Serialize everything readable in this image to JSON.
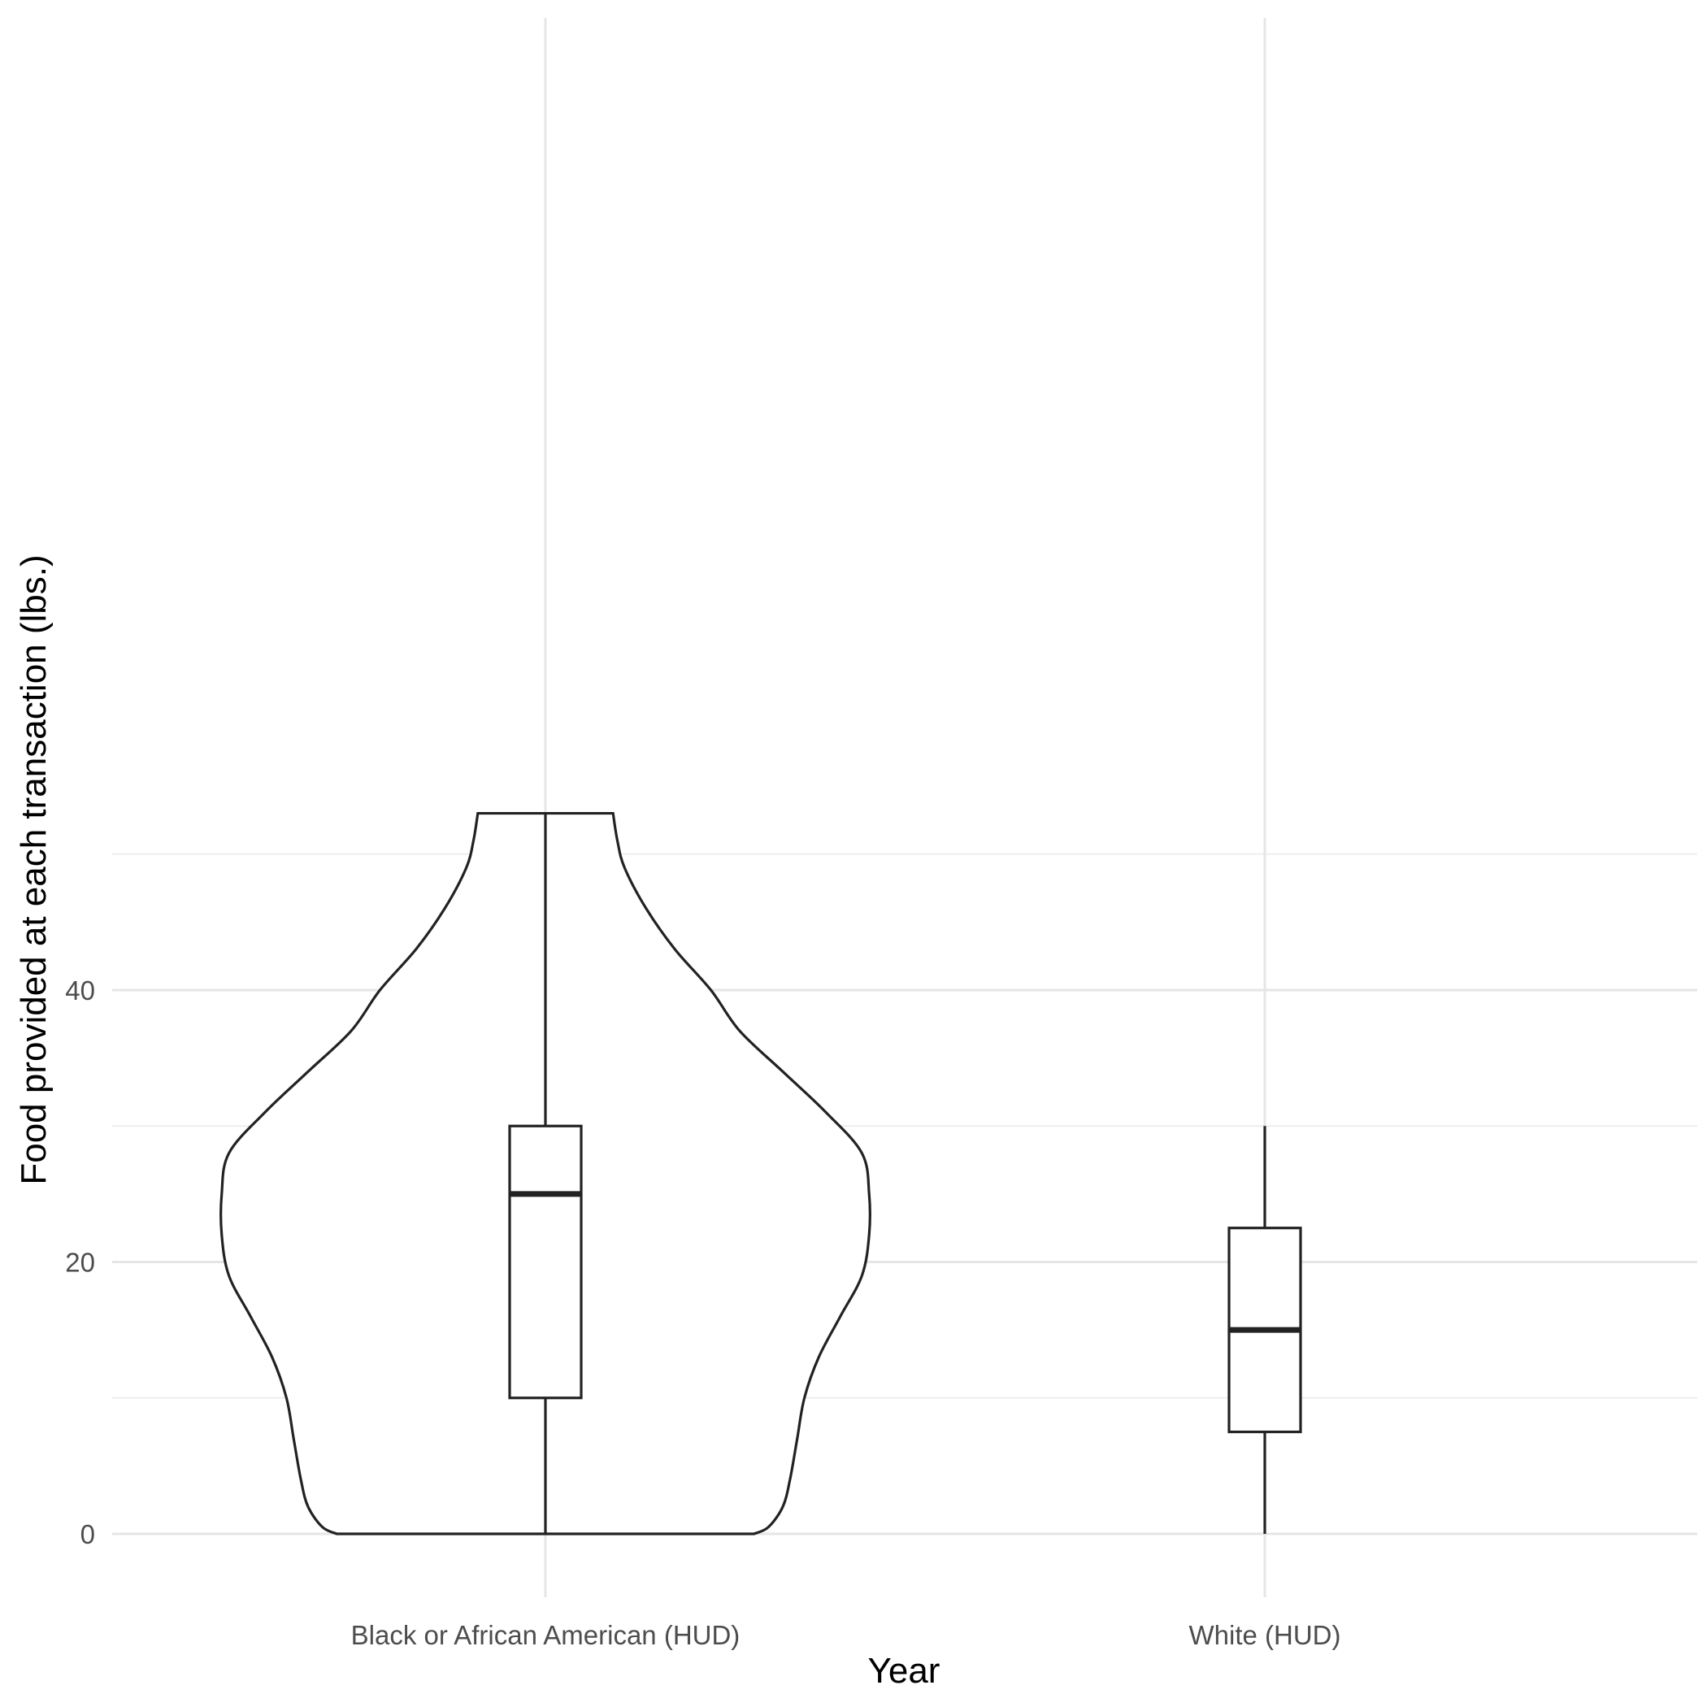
{
  "chart_data": {
    "type": "violin",
    "xlabel": "Year",
    "ylabel": "Food provided at each transaction (lbs.)",
    "categories": [
      "Black or African American (HUD)",
      "White (HUD)"
    ],
    "y_ticks": [
      0,
      20,
      40
    ],
    "ylim": [
      -3.5,
      55
    ],
    "grid": true,
    "legend": "none",
    "violins": [
      {
        "category": "Black or African American (HUD)",
        "y_min": 0,
        "y_max": 53,
        "density_profile": [
          {
            "y": 0,
            "half_width": 0.29
          },
          {
            "y": 0.5,
            "half_width": 0.31
          },
          {
            "y": 2,
            "half_width": 0.33
          },
          {
            "y": 4,
            "half_width": 0.34
          },
          {
            "y": 7,
            "half_width": 0.35
          },
          {
            "y": 10,
            "half_width": 0.36
          },
          {
            "y": 13,
            "half_width": 0.38
          },
          {
            "y": 16,
            "half_width": 0.41
          },
          {
            "y": 19,
            "half_width": 0.44
          },
          {
            "y": 22,
            "half_width": 0.45
          },
          {
            "y": 25,
            "half_width": 0.45
          },
          {
            "y": 28,
            "half_width": 0.44
          },
          {
            "y": 31,
            "half_width": 0.39
          },
          {
            "y": 34,
            "half_width": 0.33
          },
          {
            "y": 37,
            "half_width": 0.27
          },
          {
            "y": 40,
            "half_width": 0.23
          },
          {
            "y": 43,
            "half_width": 0.18
          },
          {
            "y": 46,
            "half_width": 0.14
          },
          {
            "y": 49,
            "half_width": 0.11
          },
          {
            "y": 51,
            "half_width": 0.1
          },
          {
            "y": 53,
            "half_width": 0.094
          }
        ]
      }
    ],
    "boxplots": [
      {
        "category": "Black or African American (HUD)",
        "min": 0,
        "q1": 10,
        "median": 25,
        "q3": 30,
        "max": 53
      },
      {
        "category": "White (HUD)",
        "min": 0,
        "q1": 7.5,
        "median": 15,
        "q3": 22.5,
        "max": 30
      }
    ]
  }
}
